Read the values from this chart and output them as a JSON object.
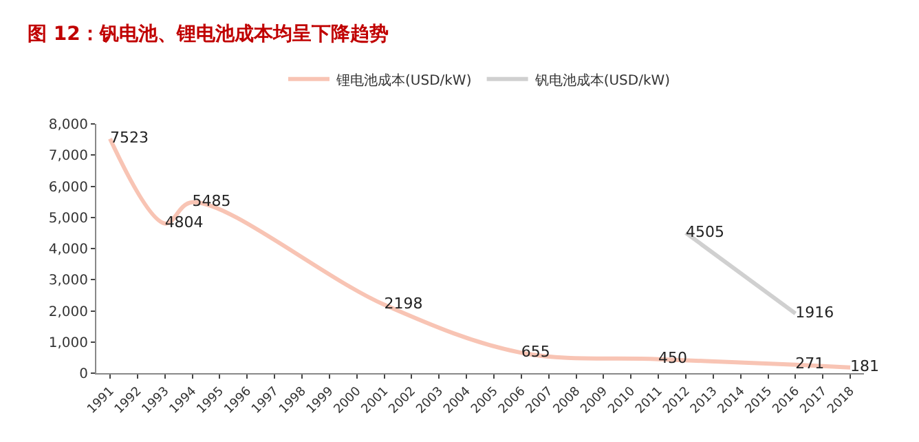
{
  "chart_data": {
    "type": "line",
    "title": "图 12：钒电池、锂电池成本均呈下降趋势",
    "categories": [
      "1991",
      "1992",
      "1993",
      "1994",
      "1995",
      "1996",
      "1997",
      "1998",
      "1999",
      "2000",
      "2001",
      "2002",
      "2003",
      "2004",
      "2005",
      "2006",
      "2007",
      "2008",
      "2009",
      "2010",
      "2011",
      "2012",
      "2013",
      "2014",
      "2015",
      "2016",
      "2017",
      "2018"
    ],
    "series": [
      {
        "name": "锂电池成本(USD/kW)",
        "color": "#f8c4b4",
        "values": [
          7523,
          null,
          4804,
          5485,
          null,
          null,
          null,
          null,
          null,
          null,
          2198,
          null,
          null,
          null,
          null,
          655,
          null,
          null,
          null,
          null,
          450,
          null,
          null,
          null,
          null,
          271,
          null,
          181
        ]
      },
      {
        "name": "钒电池成本(USD/kW)",
        "color": "#d0d0d0",
        "values": [
          null,
          null,
          null,
          null,
          null,
          null,
          null,
          null,
          null,
          null,
          null,
          null,
          null,
          null,
          null,
          null,
          null,
          null,
          null,
          null,
          null,
          4505,
          null,
          null,
          null,
          1916,
          null,
          null
        ]
      }
    ],
    "ylim": [
      0,
      8000
    ],
    "yticks": [
      {
        "value": 0,
        "label": "0"
      },
      {
        "value": 1000,
        "label": "1,000"
      },
      {
        "value": 2000,
        "label": "2,000"
      },
      {
        "value": 3000,
        "label": "3,000"
      },
      {
        "value": 4000,
        "label": "4,000"
      },
      {
        "value": 5000,
        "label": "5,000"
      },
      {
        "value": 6000,
        "label": "6,000"
      },
      {
        "value": 7000,
        "label": "7,000"
      },
      {
        "value": 8000,
        "label": "8,000"
      }
    ],
    "legend": "top",
    "marker": "none",
    "line_style": "solid",
    "data_labels": true
  }
}
